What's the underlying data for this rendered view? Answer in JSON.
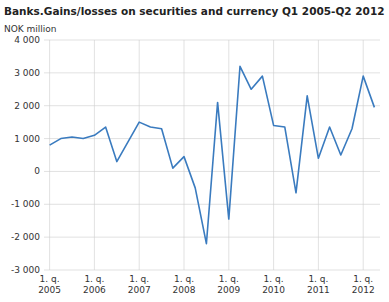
{
  "chart_data": {
    "type": "line",
    "title": "Banks.Gains/losses on securities and currency Q1 2005-Q2 2012",
    "y_label": "NOK million",
    "categories": [
      "1. q.\n2005",
      null,
      null,
      null,
      "1. q.\n2006",
      null,
      null,
      null,
      "1. q.\n2007",
      null,
      null,
      null,
      "1. q.\n2008",
      null,
      null,
      null,
      "1. q.\n2009",
      null,
      null,
      null,
      "1. q.\n2010",
      null,
      null,
      null,
      "1. q.\n2011",
      null,
      null,
      null,
      "1. q.\n2012",
      null
    ],
    "values": [
      800,
      1000,
      1050,
      1000,
      1100,
      1350,
      300,
      900,
      1500,
      1350,
      1300,
      100,
      450,
      -500,
      -2200,
      2100,
      -1450,
      3200,
      2500,
      2900,
      1400,
      1350,
      -650,
      2300,
      400,
      1350,
      500,
      1300,
      2900,
      1950
    ],
    "color": "#3a7bbf",
    "ylim": [
      -3000,
      4000
    ],
    "yticks": [
      {
        "value": -3000,
        "label": "-3 000"
      },
      {
        "value": -2000,
        "label": "-2 000"
      },
      {
        "value": -1000,
        "label": "-1 000"
      },
      0,
      {
        "value": 1000,
        "label": "1 000"
      },
      {
        "value": 2000,
        "label": "2 000"
      },
      {
        "value": 3000,
        "label": "3 000"
      },
      {
        "value": 4000,
        "label": "4 000"
      }
    ],
    "grid": true
  }
}
